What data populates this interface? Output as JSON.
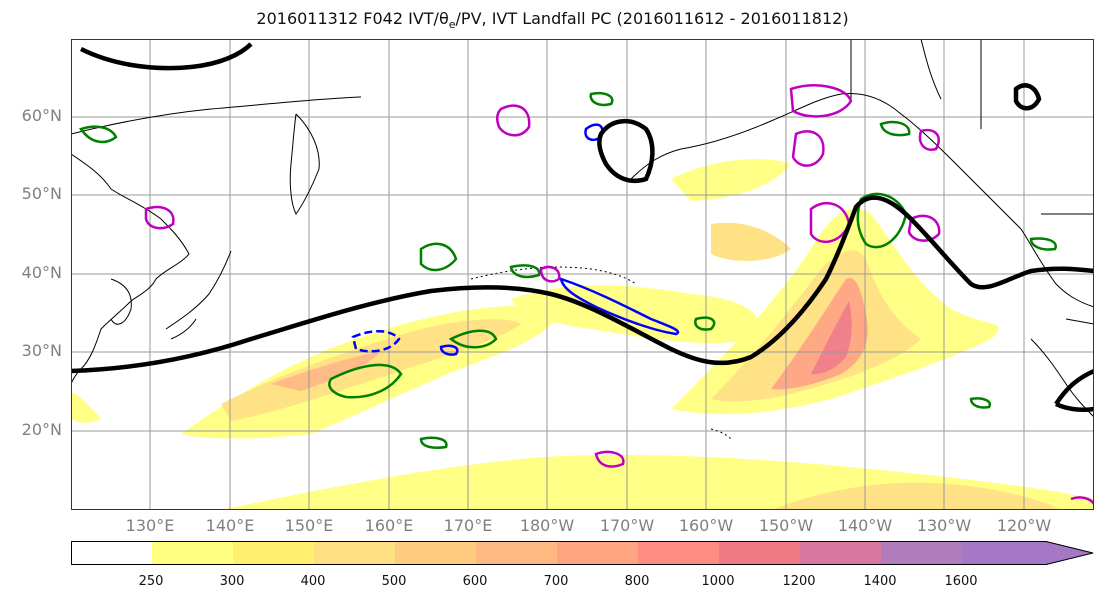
{
  "title": {
    "prefix": "2016011312 F042 IVT/",
    "theta": "θ",
    "theta_sub": "e",
    "suffix": "/PV, IVT Landfall PC (2016011612 - 2016011812)"
  },
  "map": {
    "lat_labels": [
      "60°N",
      "50°N",
      "40°N",
      "30°N",
      "20°N"
    ],
    "lon_labels": [
      "130°E",
      "140°E",
      "150°E",
      "160°E",
      "170°E",
      "180°W",
      "170°W",
      "160°W",
      "150°W",
      "140°W",
      "130°W",
      "120°W"
    ],
    "colors": {
      "ocean": "#ffffff",
      "coast": "#000000",
      "grid": "#9a9a9a",
      "jet_contour": "#000000",
      "green_contour": "#008000",
      "blue_contour": "#0000ff",
      "magenta_contour": "#c000c0"
    }
  },
  "colorbar": {
    "tick_labels": [
      "250",
      "300",
      "400",
      "500",
      "600",
      "700",
      "800",
      "1000",
      "1200",
      "1400",
      "1600"
    ],
    "colors": [
      "#ffffff",
      "#ffff80",
      "#fff070",
      "#ffe080",
      "#ffcc80",
      "#ffb880",
      "#ffa480",
      "#ff8c80",
      "#f07a84",
      "#d878a0",
      "#b07cbc",
      "#a478c4"
    ]
  }
}
